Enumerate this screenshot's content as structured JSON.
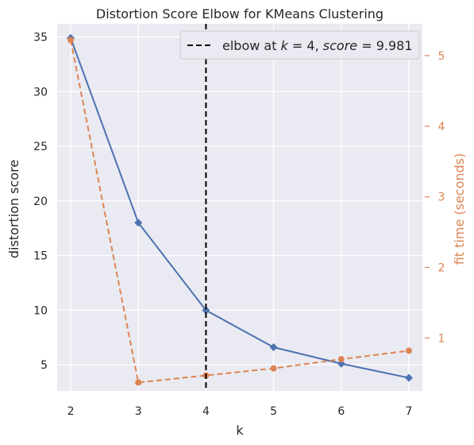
{
  "chart_data": {
    "type": "line",
    "title": "Distortion Score Elbow for KMeans Clustering",
    "xlabel": "k",
    "ylabel": "distortion score",
    "y2label": "fit time (seconds)",
    "x": [
      2,
      3,
      4,
      5,
      6,
      7
    ],
    "xlim": [
      1.8,
      7.2
    ],
    "ylim": [
      2.6,
      36.2
    ],
    "y2lim": [
      0.25,
      5.45
    ],
    "xticks": [
      2,
      3,
      4,
      5,
      6,
      7
    ],
    "yticks": [
      5,
      10,
      15,
      20,
      25,
      30,
      35
    ],
    "y2ticks": [
      1,
      2,
      3,
      4,
      5
    ],
    "grid": true,
    "legend_position": "top-right",
    "series": [
      {
        "role": "distortion",
        "axis": "left",
        "values": [
          34.9,
          18.0,
          9.981,
          6.6,
          5.1,
          3.8
        ],
        "color": "#4c72b0",
        "marker": "diamond",
        "linestyle": "solid"
      },
      {
        "role": "fit_time",
        "axis": "right",
        "values": [
          5.22,
          0.37,
          0.47,
          0.57,
          0.7,
          0.82
        ],
        "color": "#dd8452",
        "marker": "circle",
        "linestyle": "dashed"
      }
    ],
    "annotations": [
      {
        "type": "vline",
        "x": 4,
        "color": "#000000",
        "linestyle": "dashed",
        "legend_plain": "elbow at ",
        "legend_k": "k",
        "legend_eq1": " = 4, ",
        "legend_score": "score",
        "legend_eq2": " = 9.981"
      }
    ],
    "colors": {
      "plot_background": "#eaeaf2",
      "grid": "#ffffff",
      "text": "#262626",
      "right_axis": "#dd8452"
    }
  }
}
